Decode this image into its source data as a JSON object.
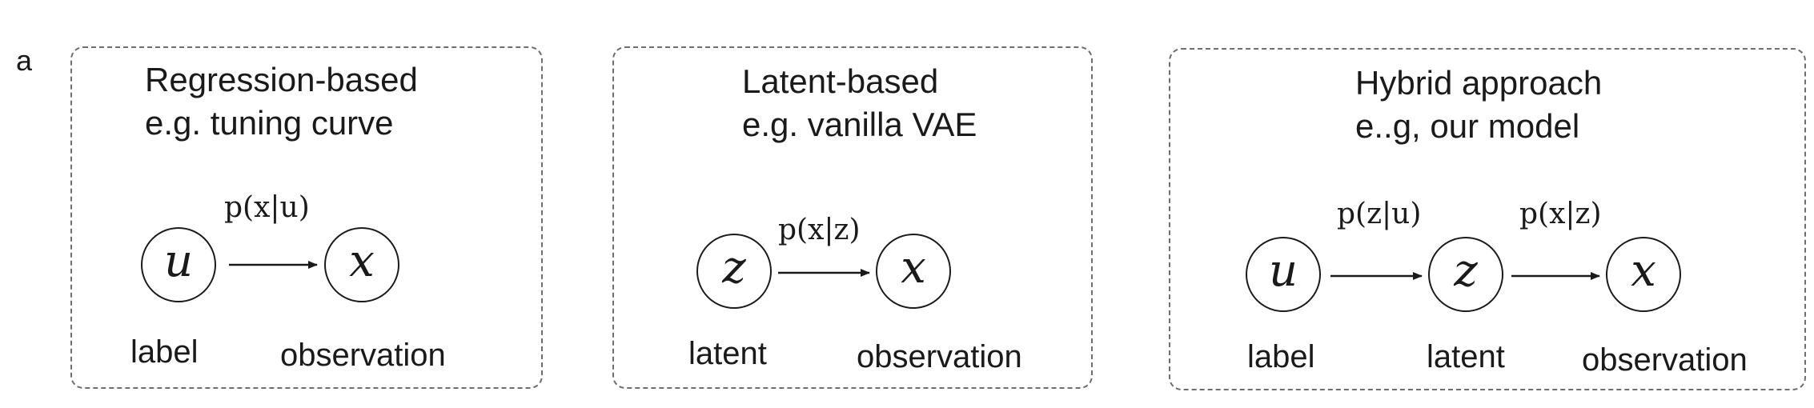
{
  "panel_letter": "a",
  "panels": [
    {
      "title_line1": "Regression-based",
      "title_line2": "e.g.  tuning curve",
      "edges": [
        "p(x|u)"
      ],
      "nodes": [
        {
          "symbol": "u",
          "caption": "label"
        },
        {
          "symbol": "x",
          "caption": "observation"
        }
      ]
    },
    {
      "title_line1": "Latent-based",
      "title_line2": "e.g.  vanilla VAE",
      "edges": [
        "p(x|z)"
      ],
      "nodes": [
        {
          "symbol": "z",
          "caption": "latent"
        },
        {
          "symbol": "x",
          "caption": "observation"
        }
      ]
    },
    {
      "title_line1": "Hybrid approach",
      "title_line2": "e..g, our model",
      "edges": [
        "p(z|u)",
        "p(x|z)"
      ],
      "nodes": [
        {
          "symbol": "u",
          "caption": "label"
        },
        {
          "symbol": "z",
          "caption": "latent"
        },
        {
          "symbol": "x",
          "caption": "observation"
        }
      ]
    }
  ]
}
